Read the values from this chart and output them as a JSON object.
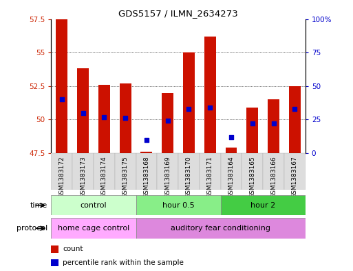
{
  "title": "GDS5157 / ILMN_2634273",
  "samples": [
    "GSM1383172",
    "GSM1383173",
    "GSM1383174",
    "GSM1383175",
    "GSM1383168",
    "GSM1383169",
    "GSM1383170",
    "GSM1383171",
    "GSM1383164",
    "GSM1383165",
    "GSM1383166",
    "GSM1383167"
  ],
  "count_values": [
    57.5,
    53.8,
    52.6,
    52.7,
    47.6,
    52.0,
    55.0,
    56.2,
    47.9,
    50.9,
    51.5,
    52.5
  ],
  "percentile_values": [
    40,
    30,
    27,
    26,
    10,
    24,
    33,
    34,
    12,
    22,
    22,
    33
  ],
  "ylim_left": [
    47.5,
    57.5
  ],
  "ylim_right": [
    0,
    100
  ],
  "yticks_left": [
    47.5,
    50.0,
    52.5,
    55.0,
    57.5
  ],
  "yticks_right": [
    0,
    25,
    50,
    75,
    100
  ],
  "ytick_labels_left": [
    "47.5",
    "50",
    "52.5",
    "55",
    "57.5"
  ],
  "ytick_labels_right": [
    "0",
    "25",
    "50",
    "75",
    "100%"
  ],
  "time_groups": [
    {
      "label": "control",
      "start": 0,
      "end": 4,
      "color": "#ccffcc"
    },
    {
      "label": "hour 0.5",
      "start": 4,
      "end": 8,
      "color": "#88ee88"
    },
    {
      "label": "hour 2",
      "start": 8,
      "end": 12,
      "color": "#44cc44"
    }
  ],
  "protocol_groups": [
    {
      "label": "home cage control",
      "start": 0,
      "end": 4,
      "color": "#ffaaff"
    },
    {
      "label": "auditory fear conditioning",
      "start": 4,
      "end": 12,
      "color": "#dd88dd"
    }
  ],
  "bar_color": "#cc1100",
  "dot_color": "#0000cc",
  "bar_bottom": 47.5,
  "legend_items": [
    {
      "label": "count",
      "color": "#cc1100"
    },
    {
      "label": "percentile rank within the sample",
      "color": "#0000cc"
    }
  ],
  "grid_color": "#000000",
  "bg_color": "#ffffff",
  "left_tick_color": "#cc2200",
  "right_tick_color": "#0000cc"
}
